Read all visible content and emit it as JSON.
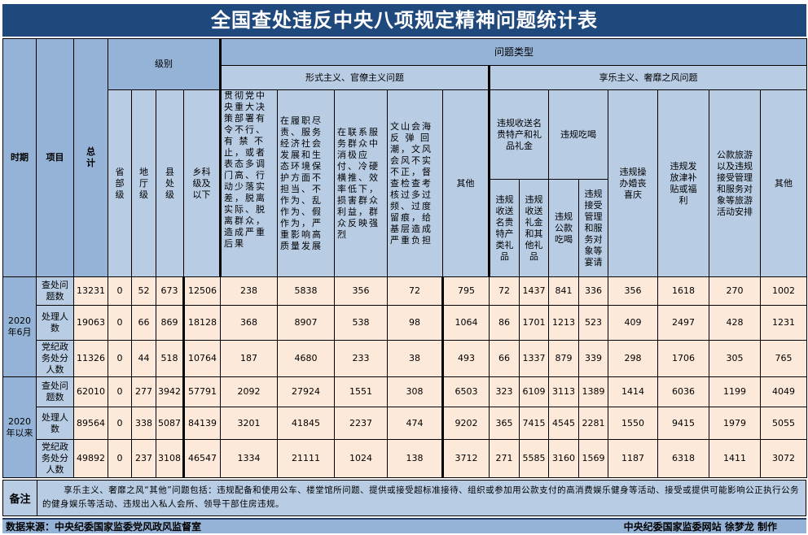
{
  "title": "全国查处违反中央八项规定精神问题统计表",
  "header": {
    "period": "时期",
    "item": "项目",
    "total": "总计",
    "level_group": "级别",
    "levels": [
      "省部级",
      "地厅级",
      "县处级",
      "乡科级及以下"
    ],
    "problem_type": "问题类型",
    "formalism": {
      "label": "形式主义、官僚主义问题",
      "columns": [
        "贯彻党中央重大决策部署有令不行、有 禁 不止，或者表态多调门高、行动少落实差，脱离实际、脱离群众，造成严重后果",
        "在履职尽责、服务经济社会发展和生态环境保护方面不担当、不作为、乱作为、假作为，严重影响高质量发展",
        "在联系服务群众中消极应付、冷硬横推、效率低下，损害群众利益，群众反映强烈",
        "文山会海反 弹 回潮，文风会风不实不正，督查检查考核过多过频、过度留痕，给基层造成严重负担",
        "其他"
      ]
    },
    "hedonism": {
      "label": "享乐主义、奢靡之风问题",
      "gifts": {
        "label": "违规收送名贵特产和礼品礼金",
        "columns": [
          "违规收送名贵特产类礼品",
          "违规收送礼金和其他礼品"
        ]
      },
      "dining": {
        "label": "违规吃喝",
        "columns": [
          "违规公款吃喝",
          "违规接受管理和服务对象等宴请"
        ]
      },
      "columns": [
        "违规操办婚丧喜庆",
        "违规发放津补贴或福利",
        "公款旅游以及违规接受管理和服务对象等旅游活动安排",
        "其他"
      ]
    }
  },
  "groups": [
    {
      "period": "2020年6月",
      "rows": [
        {
          "item": "查处问题数",
          "values": [
            "13231",
            "0",
            "52",
            "673",
            "12506",
            "238",
            "5838",
            "356",
            "72",
            "795",
            "72",
            "1437",
            "841",
            "336",
            "356",
            "1618",
            "270",
            "1002"
          ]
        },
        {
          "item": "处理人数",
          "values": [
            "19063",
            "0",
            "66",
            "869",
            "18128",
            "368",
            "8907",
            "538",
            "98",
            "1064",
            "86",
            "1701",
            "1213",
            "523",
            "409",
            "2497",
            "428",
            "1231"
          ]
        },
        {
          "item": "党纪政务处分人数",
          "values": [
            "11326",
            "0",
            "44",
            "518",
            "10764",
            "187",
            "4680",
            "233",
            "38",
            "493",
            "66",
            "1337",
            "879",
            "339",
            "298",
            "1706",
            "305",
            "765"
          ]
        }
      ]
    },
    {
      "period": "2020年以来",
      "rows": [
        {
          "item": "查处问题数",
          "values": [
            "62010",
            "0",
            "277",
            "3942",
            "57791",
            "2092",
            "27924",
            "1551",
            "308",
            "6503",
            "323",
            "6109",
            "3113",
            "1389",
            "1414",
            "6036",
            "1199",
            "4049"
          ]
        },
        {
          "item": "处理人数",
          "values": [
            "89564",
            "0",
            "338",
            "5087",
            "84139",
            "3201",
            "41845",
            "2237",
            "474",
            "9202",
            "365",
            "7415",
            "4545",
            "2281",
            "1550",
            "9415",
            "1979",
            "5055"
          ]
        },
        {
          "item": "党纪政务处分人数",
          "values": [
            "49892",
            "0",
            "237",
            "3108",
            "46547",
            "1334",
            "21111",
            "1024",
            "138",
            "3712",
            "271",
            "5585",
            "3160",
            "1569",
            "1187",
            "6318",
            "1411",
            "3072"
          ]
        }
      ]
    }
  ],
  "note": {
    "label": "备注",
    "text": "享乐主义、奢靡之风“其他”问题包括：违规配备和使用公车、楼堂馆所问题、提供或接受超标准接待、组织或参加用公款支付的高消费娱乐健身等活动、接受或提供可能影响公正执行公务的健身娱乐等活动、违规出入私人会所、领导干部住房违规。"
  },
  "footer": {
    "source": "数据来源：中央纪委国家监委党风政风监督室",
    "credit": "中央纪委国家监委网站 徐梦龙 制作"
  },
  "colors": {
    "title_bg": "#1f497d",
    "header_dark": "#95b3d7",
    "header_light": "#b8cce4",
    "data_bg": "#fde9d9"
  }
}
